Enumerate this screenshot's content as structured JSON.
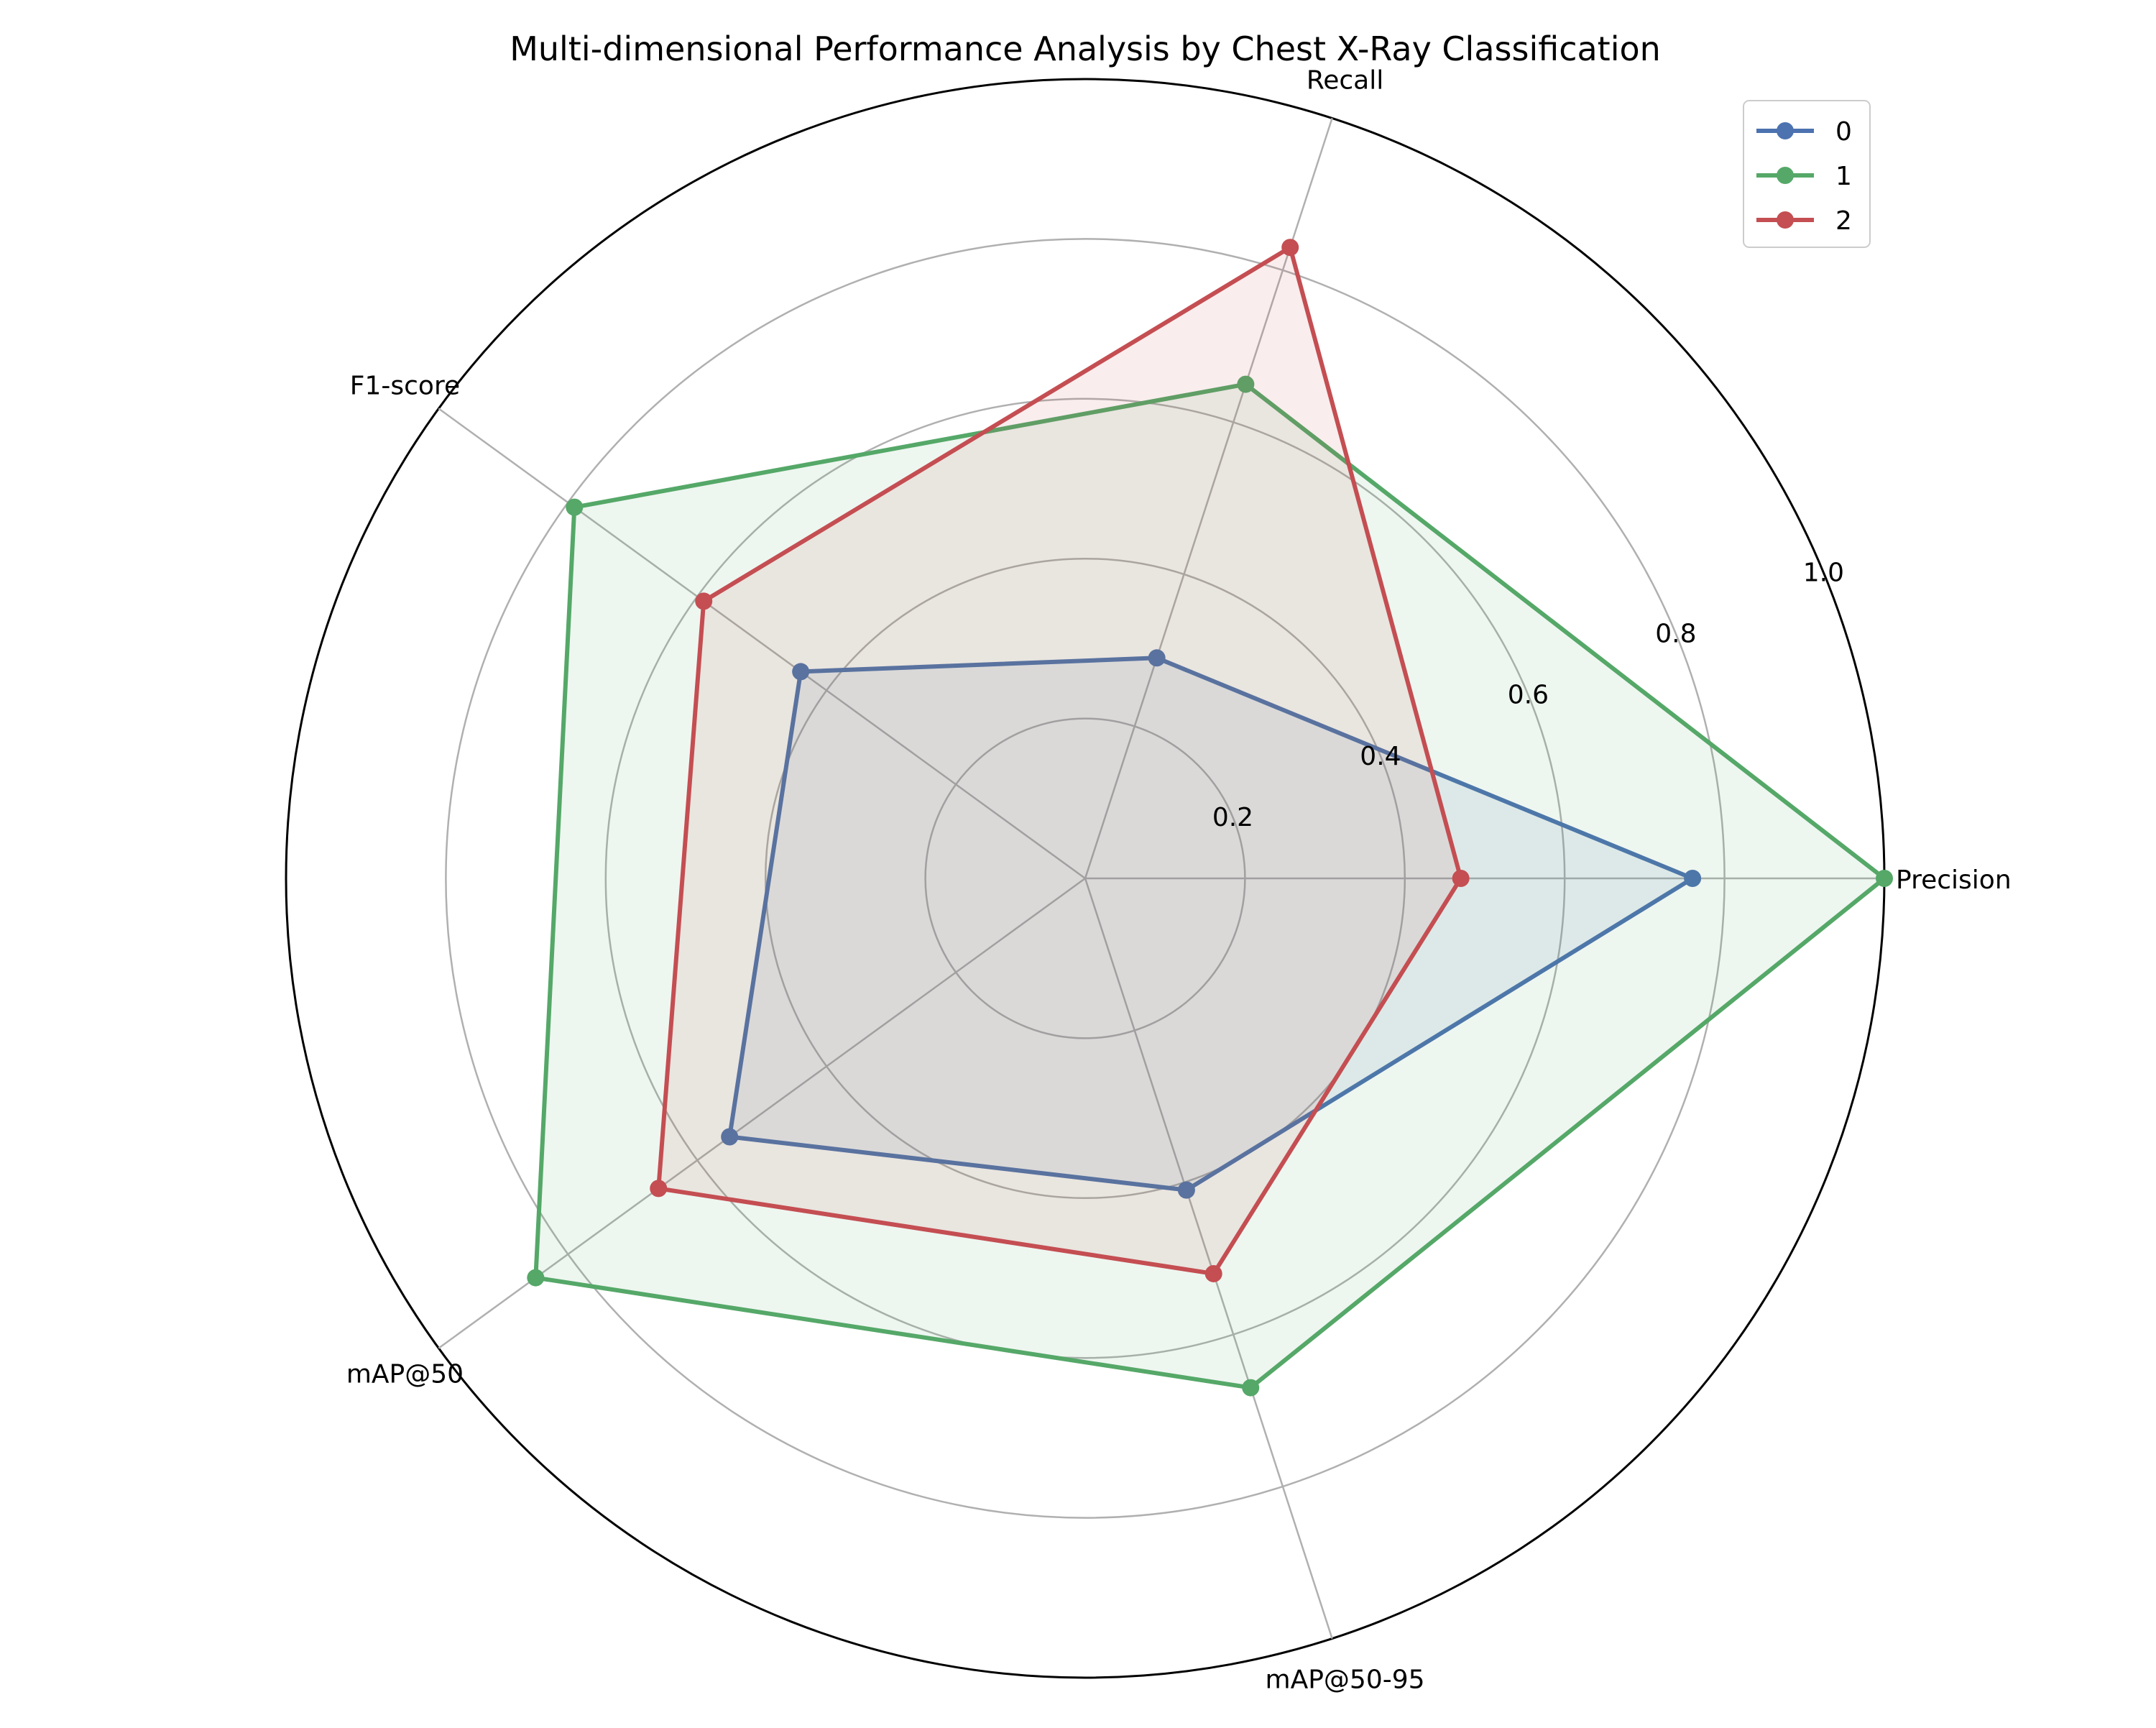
{
  "chart_data": {
    "type": "radar",
    "title": "Multi-dimensional Performance Analysis by Chest X-Ray Classification",
    "axes": [
      "Precision",
      "Recall",
      "F1-score",
      "mAP@50",
      "mAP@50-95"
    ],
    "rlim": [
      0,
      1.0
    ],
    "rticks": [
      0.2,
      0.4,
      0.6,
      0.8,
      1.0
    ],
    "rtick_labels": [
      "0.2",
      "0.4",
      "0.6",
      "0.8",
      "1.0"
    ],
    "grid": true,
    "legend": "top-right",
    "series": [
      {
        "name": "0",
        "color": "#4c72b0",
        "values": [
          0.76,
          0.29,
          0.44,
          0.55,
          0.41
        ]
      },
      {
        "name": "1",
        "color": "#55a868",
        "values": [
          1.0,
          0.65,
          0.79,
          0.85,
          0.67
        ]
      },
      {
        "name": "2",
        "color": "#c44e52",
        "values": [
          0.47,
          0.83,
          0.59,
          0.66,
          0.52
        ]
      }
    ]
  }
}
